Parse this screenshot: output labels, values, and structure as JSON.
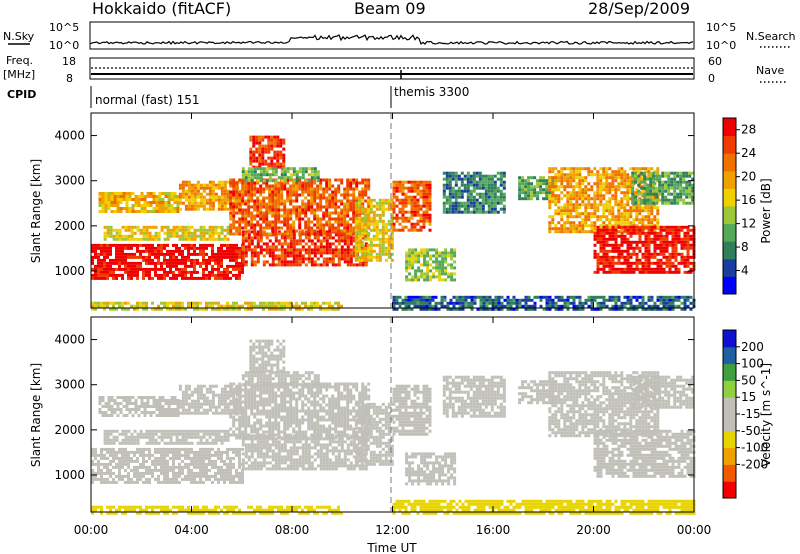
{
  "header": {
    "site": "Hokkaido (fitACF)",
    "beam": "Beam 09",
    "date": "28/Sep/2009"
  },
  "nsky": {
    "label": "N.Sky",
    "ticks": [
      "10^5",
      "10^0"
    ],
    "right_ticks": [
      "10^5",
      "10^0"
    ],
    "right_label": "N.Search"
  },
  "freq": {
    "label_line1": "Freq.",
    "label_line2": "[MHz]",
    "ticks": [
      "18",
      "8"
    ],
    "right_ticks": [
      "60",
      "0"
    ],
    "right_label": "Nave"
  },
  "cpid": {
    "label": "CPID",
    "segments": [
      {
        "label": "normal (fast) 151",
        "start_hour": 0
      },
      {
        "label": "themis 3300",
        "start_hour": 12
      }
    ]
  },
  "x_axis": {
    "ticks": [
      "00:00",
      "04:00",
      "08:00",
      "12:00",
      "16:00",
      "20:00",
      "00:00"
    ],
    "xlabel": "Time UT"
  },
  "colors": {
    "power": [
      "#0000ff",
      "#1a3e9e",
      "#2f7f5a",
      "#54a85a",
      "#9cc838",
      "#f0d000",
      "#f0a000",
      "#f07000",
      "#f03c00",
      "#f00000"
    ],
    "velocity": [
      "#f00000",
      "#f05a00",
      "#f0a000",
      "#e8d400",
      "#c0c0b8",
      "#c0c0b8",
      "#90d040",
      "#40a040",
      "#2060a0",
      "#1010d0"
    ]
  },
  "chart_data": [
    {
      "type": "heatmap",
      "panel": "power",
      "ylabel": "Slant Range [km]",
      "xlabel": "",
      "yticks": [
        "1000",
        "2000",
        "3000",
        "4000"
      ],
      "ylim": [
        180,
        4500
      ],
      "xlim": [
        0,
        24
      ],
      "colorbar": {
        "label": "Power [dB]",
        "ticks": [
          "4",
          "8",
          "12",
          "16",
          "20",
          "24",
          "28"
        ],
        "range": [
          0,
          30
        ]
      },
      "regions": [
        {
          "t0": 0.0,
          "t1": 6.0,
          "r0": 850,
          "r1": 1600,
          "v": 29
        },
        {
          "t0": 6.0,
          "t1": 11.0,
          "r0": 1150,
          "r1": 1900,
          "v": 26
        },
        {
          "t0": 0.5,
          "t1": 5.5,
          "r0": 1700,
          "r1": 2000,
          "v": 17
        },
        {
          "t0": 0.3,
          "t1": 3.5,
          "r0": 2300,
          "r1": 2750,
          "v": 18
        },
        {
          "t0": 3.5,
          "t1": 6.0,
          "r0": 2400,
          "r1": 3000,
          "v": 20
        },
        {
          "t0": 5.5,
          "t1": 11.0,
          "r0": 1800,
          "r1": 3050,
          "v": 24
        },
        {
          "t0": 6.3,
          "t1": 7.7,
          "r0": 3300,
          "r1": 4000,
          "v": 26
        },
        {
          "t0": 10.5,
          "t1": 12.0,
          "r0": 1250,
          "r1": 2600,
          "v": 17
        },
        {
          "t0": 12.0,
          "t1": 13.5,
          "r0": 1900,
          "r1": 3000,
          "v": 24
        },
        {
          "t0": 12.5,
          "t1": 14.5,
          "r0": 800,
          "r1": 1500,
          "v": 13
        },
        {
          "t0": 12.0,
          "t1": 24.0,
          "r0": 180,
          "r1": 450,
          "v": 6
        },
        {
          "t0": 14.0,
          "t1": 16.5,
          "r0": 2300,
          "r1": 3200,
          "v": 8
        },
        {
          "t0": 17.0,
          "t1": 18.5,
          "r0": 2600,
          "r1": 3100,
          "v": 10
        },
        {
          "t0": 18.2,
          "t1": 22.5,
          "r0": 1900,
          "r1": 3300,
          "v": 20
        },
        {
          "t0": 20.0,
          "t1": 24.0,
          "r0": 950,
          "r1": 2000,
          "v": 28
        },
        {
          "t0": 21.5,
          "t1": 24.0,
          "r0": 2500,
          "r1": 3200,
          "v": 10
        },
        {
          "t0": 0.0,
          "t1": 10.0,
          "r0": 180,
          "r1": 320,
          "v": 16
        },
        {
          "t0": 6.0,
          "t1": 9.0,
          "r0": 3000,
          "r1": 3300,
          "v": 12
        }
      ]
    },
    {
      "type": "heatmap",
      "panel": "velocity",
      "ylabel": "Slant Range [km]",
      "xlabel": "Time UT",
      "yticks": [
        "1000",
        "2000",
        "3000",
        "4000"
      ],
      "ylim": [
        180,
        4500
      ],
      "xlim": [
        0,
        24
      ],
      "colorbar": {
        "label": "Velocity [m s^-1]",
        "ticks": [
          "200",
          "100",
          "50",
          "15",
          "-15",
          "-50",
          "-100",
          "-200"
        ],
        "range": [
          -250,
          250
        ]
      },
      "regions": [
        {
          "t0": 0.0,
          "t1": 6.0,
          "r0": 850,
          "r1": 1600,
          "v": 0
        },
        {
          "t0": 6.0,
          "t1": 11.0,
          "r0": 1150,
          "r1": 1900,
          "v": 5
        },
        {
          "t0": 0.5,
          "t1": 5.5,
          "r0": 1700,
          "r1": 2000,
          "v": 0
        },
        {
          "t0": 0.3,
          "t1": 3.5,
          "r0": 2300,
          "r1": 2750,
          "v": -10
        },
        {
          "t0": 3.5,
          "t1": 6.0,
          "r0": 2400,
          "r1": 3000,
          "v": 0
        },
        {
          "t0": 5.5,
          "t1": 11.0,
          "r0": 1800,
          "r1": 3050,
          "v": -20
        },
        {
          "t0": 6.3,
          "t1": 7.7,
          "r0": 3300,
          "r1": 4000,
          "v": -30
        },
        {
          "t0": 10.5,
          "t1": 12.0,
          "r0": 1250,
          "r1": 2600,
          "v": 40
        },
        {
          "t0": 12.0,
          "t1": 13.5,
          "r0": 1900,
          "r1": 3000,
          "v": 0
        },
        {
          "t0": 12.5,
          "t1": 14.5,
          "r0": 800,
          "r1": 1500,
          "v": 0
        },
        {
          "t0": 12.0,
          "t1": 24.0,
          "r0": 180,
          "r1": 450,
          "v": -60
        },
        {
          "t0": 14.0,
          "t1": 16.5,
          "r0": 2300,
          "r1": 3200,
          "v": 30
        },
        {
          "t0": 17.0,
          "t1": 18.5,
          "r0": 2600,
          "r1": 3100,
          "v": 0
        },
        {
          "t0": 18.2,
          "t1": 22.5,
          "r0": 1900,
          "r1": 3300,
          "v": 35
        },
        {
          "t0": 20.0,
          "t1": 24.0,
          "r0": 950,
          "r1": 2000,
          "v": 0
        },
        {
          "t0": 21.5,
          "t1": 24.0,
          "r0": 2500,
          "r1": 3200,
          "v": 20
        },
        {
          "t0": 0.0,
          "t1": 10.0,
          "r0": 180,
          "r1": 320,
          "v": -80
        },
        {
          "t0": 6.0,
          "t1": 9.0,
          "r0": 3000,
          "r1": 3300,
          "v": 0
        }
      ]
    }
  ]
}
